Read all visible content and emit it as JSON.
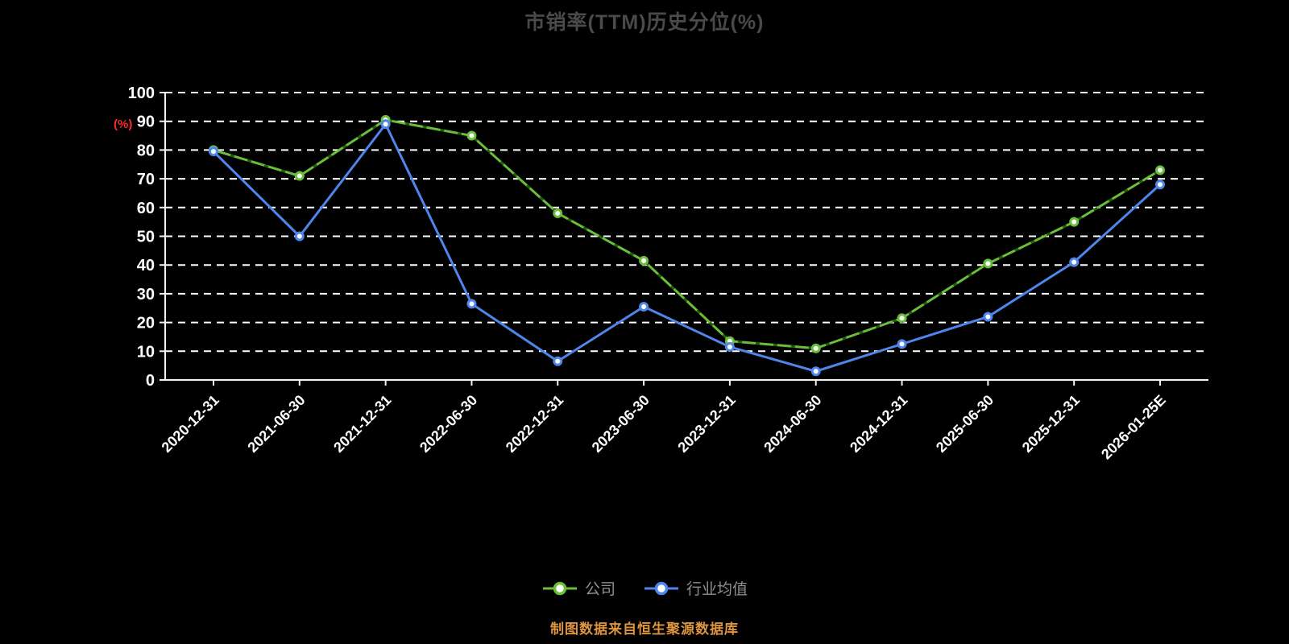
{
  "title": "市销率(TTM)历史分位(%)",
  "footer": "制图数据来自恒生聚源数据库",
  "colors": {
    "background": "#000000",
    "grid": "#ffffff",
    "axis": "#f2f2f2",
    "tick_label": "#ffffff",
    "title": "#4a4a4a",
    "legend_label": "#8f8f8f",
    "footer": "#df9540",
    "ylabel": "#ff2a2a",
    "company_green": "#6abf3a",
    "industry_blue": "#4f86ec"
  },
  "chart_data": {
    "type": "line",
    "title": "市销率(TTM)历史分位(%)",
    "xlabel": "",
    "ylabel": "(%)",
    "ylim": [
      0,
      100
    ],
    "yticks": [
      0,
      10,
      20,
      30,
      40,
      50,
      60,
      70,
      80,
      90,
      100
    ],
    "grid": "dashed-horizontal-white",
    "legend_position": "bottom",
    "categories": [
      "2020-12-31",
      "2021-06-30",
      "2021-12-31",
      "2022-06-30",
      "2022-12-31",
      "2023-06-30",
      "2023-12-31",
      "2024-06-30",
      "2024-12-31",
      "2025-06-30",
      "2025-12-31",
      "2026-01-25E"
    ],
    "series": [
      {
        "name": "公司",
        "color": "#6abf3a",
        "line_style": "dash-dot",
        "values": [
          80,
          71,
          90.5,
          85,
          58,
          41.5,
          13.5,
          11,
          21.5,
          40.5,
          55,
          73
        ]
      },
      {
        "name": "行业均值",
        "color": "#4f86ec",
        "line_style": "solid",
        "values": [
          79.5,
          50,
          89,
          26.5,
          6.5,
          25.5,
          11.5,
          3,
          12.5,
          22,
          41,
          68
        ]
      }
    ],
    "footer": "制图数据来自恒生聚源数据库"
  }
}
